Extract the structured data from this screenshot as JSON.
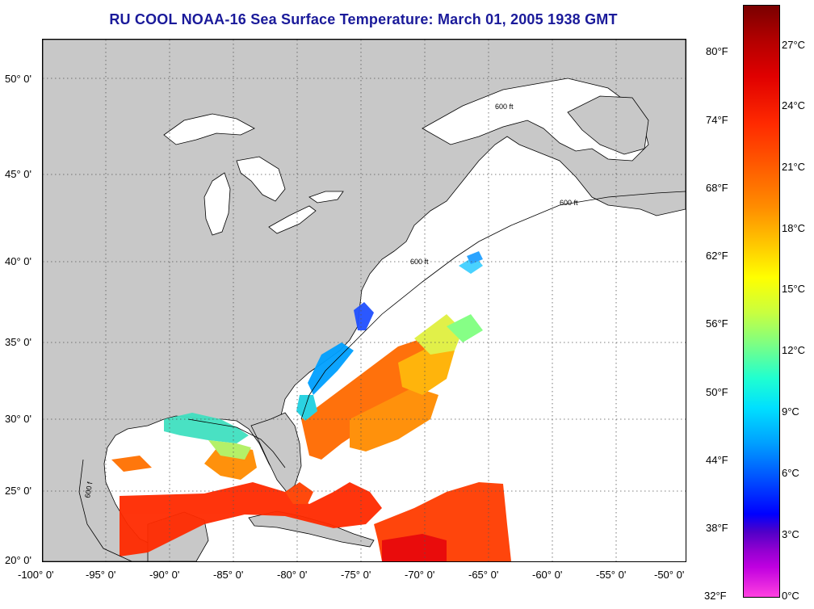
{
  "title": "RU COOL  NOAA-16  Sea Surface Temperature:  March 01, 2005 1938 GMT",
  "map": {
    "lat_labels": [
      "50° 0'",
      "45° 0'",
      "40° 0'",
      "35° 0'",
      "30° 0'",
      "25° 0'",
      "20° 0'"
    ],
    "lon_labels": [
      "-100° 0'",
      "-95° 0'",
      "-90° 0'",
      "-85° 0'",
      "-80° 0'",
      "-75° 0'",
      "-70° 0'",
      "-65° 0'",
      "-60° 0'",
      "-55° 0'",
      "-50° 0'"
    ],
    "isobath_label": "600 ft",
    "isobath_label_short": "600 f",
    "colors": {
      "land": "#c8c8c8",
      "ocean": "#ffffff",
      "cold": "#2050ff",
      "cool": "#40e0c0",
      "mild": "#e0f040",
      "warm": "#ff8c00",
      "hot": "#ff2a00"
    }
  },
  "colorbar": {
    "fahrenheit": [
      "80°F",
      "74°F",
      "68°F",
      "62°F",
      "56°F",
      "50°F",
      "44°F",
      "38°F",
      "32°F"
    ],
    "celsius": [
      "27°C",
      "24°C",
      "21°C",
      "18°C",
      "15°C",
      "12°C",
      "9°C",
      "6°C",
      "3°C",
      "0°C"
    ]
  }
}
